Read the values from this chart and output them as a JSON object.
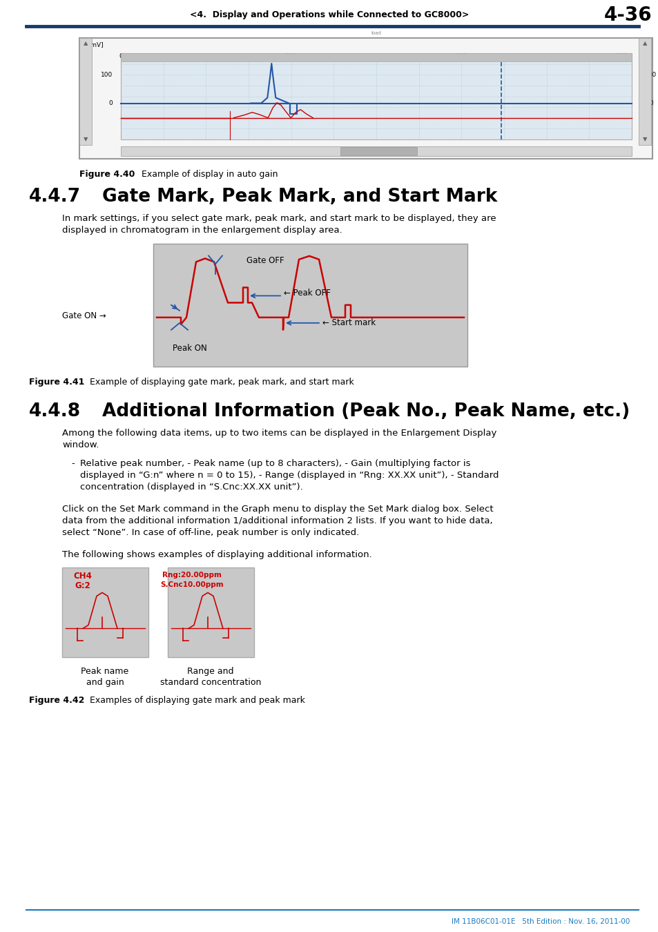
{
  "page_header": "<4.  Display and Operations while Connected to GC8000>",
  "page_number": "4-36",
  "header_line_color": "#1a3a6b",
  "section_447_num": "4.4.7",
  "section_447_title": "Gate Mark, Peak Mark, and Start Mark",
  "section_447_body_l1": "In mark settings, if you select gate mark, peak mark, and start mark to be displayed, they are",
  "section_447_body_l2": "displayed in chromatogram in the enlargement display area.",
  "fig441_caption_bold": "Figure 4.41",
  "fig441_caption_text": "Example of displaying gate mark, peak mark, and start mark",
  "section_448_num": "4.4.8",
  "section_448_title": "Additional Information (Peak No., Peak Name, etc.)",
  "section_448_body1_l1": "Among the following data items, up to two items can be displayed in the Enlargement Display",
  "section_448_body1_l2": "window.",
  "section_448_bullet_l1": "Relative peak number, - Peak name (up to 8 characters), - Gain (multiplying factor is",
  "section_448_bullet_l2": "displayed in “G:n” where n = 0 to 15), - Range (displayed in “Rng: XX.XX unit”), - Standard",
  "section_448_bullet_l3": "concentration (displayed in “S.Cnc:XX.XX unit”).",
  "section_448_body2_l1": "Click on the Set Mark command in the Graph menu to display the Set Mark dialog box. Select",
  "section_448_body2_l2": "data from the additional information 1/additional information 2 lists. If you want to hide data,",
  "section_448_body2_l3": "select “None”. In case of off-line, peak number is only indicated.",
  "section_448_body3": "The following shows examples of displaying additional information.",
  "fig442_caption_bold": "Figure 4.42",
  "fig442_caption_text": "Examples of displaying gate mark and peak mark",
  "fig440_caption_bold": "Figure 4.40",
  "fig440_caption_text": "Example of display in auto gain",
  "footer_text": "IM 11B06C01-01E   5th Edition : Nov. 16, 2011-00",
  "footer_line_color": "#1a7abf",
  "bg_color": "#ffffff",
  "text_color": "#000000",
  "dark_blue": "#1a3a6b",
  "mid_blue": "#2255aa",
  "accent_blue": "#1a7abf",
  "red": "#cc0000",
  "gray_bg": "#c8c8c8",
  "inner_bg": "#dde8f0"
}
